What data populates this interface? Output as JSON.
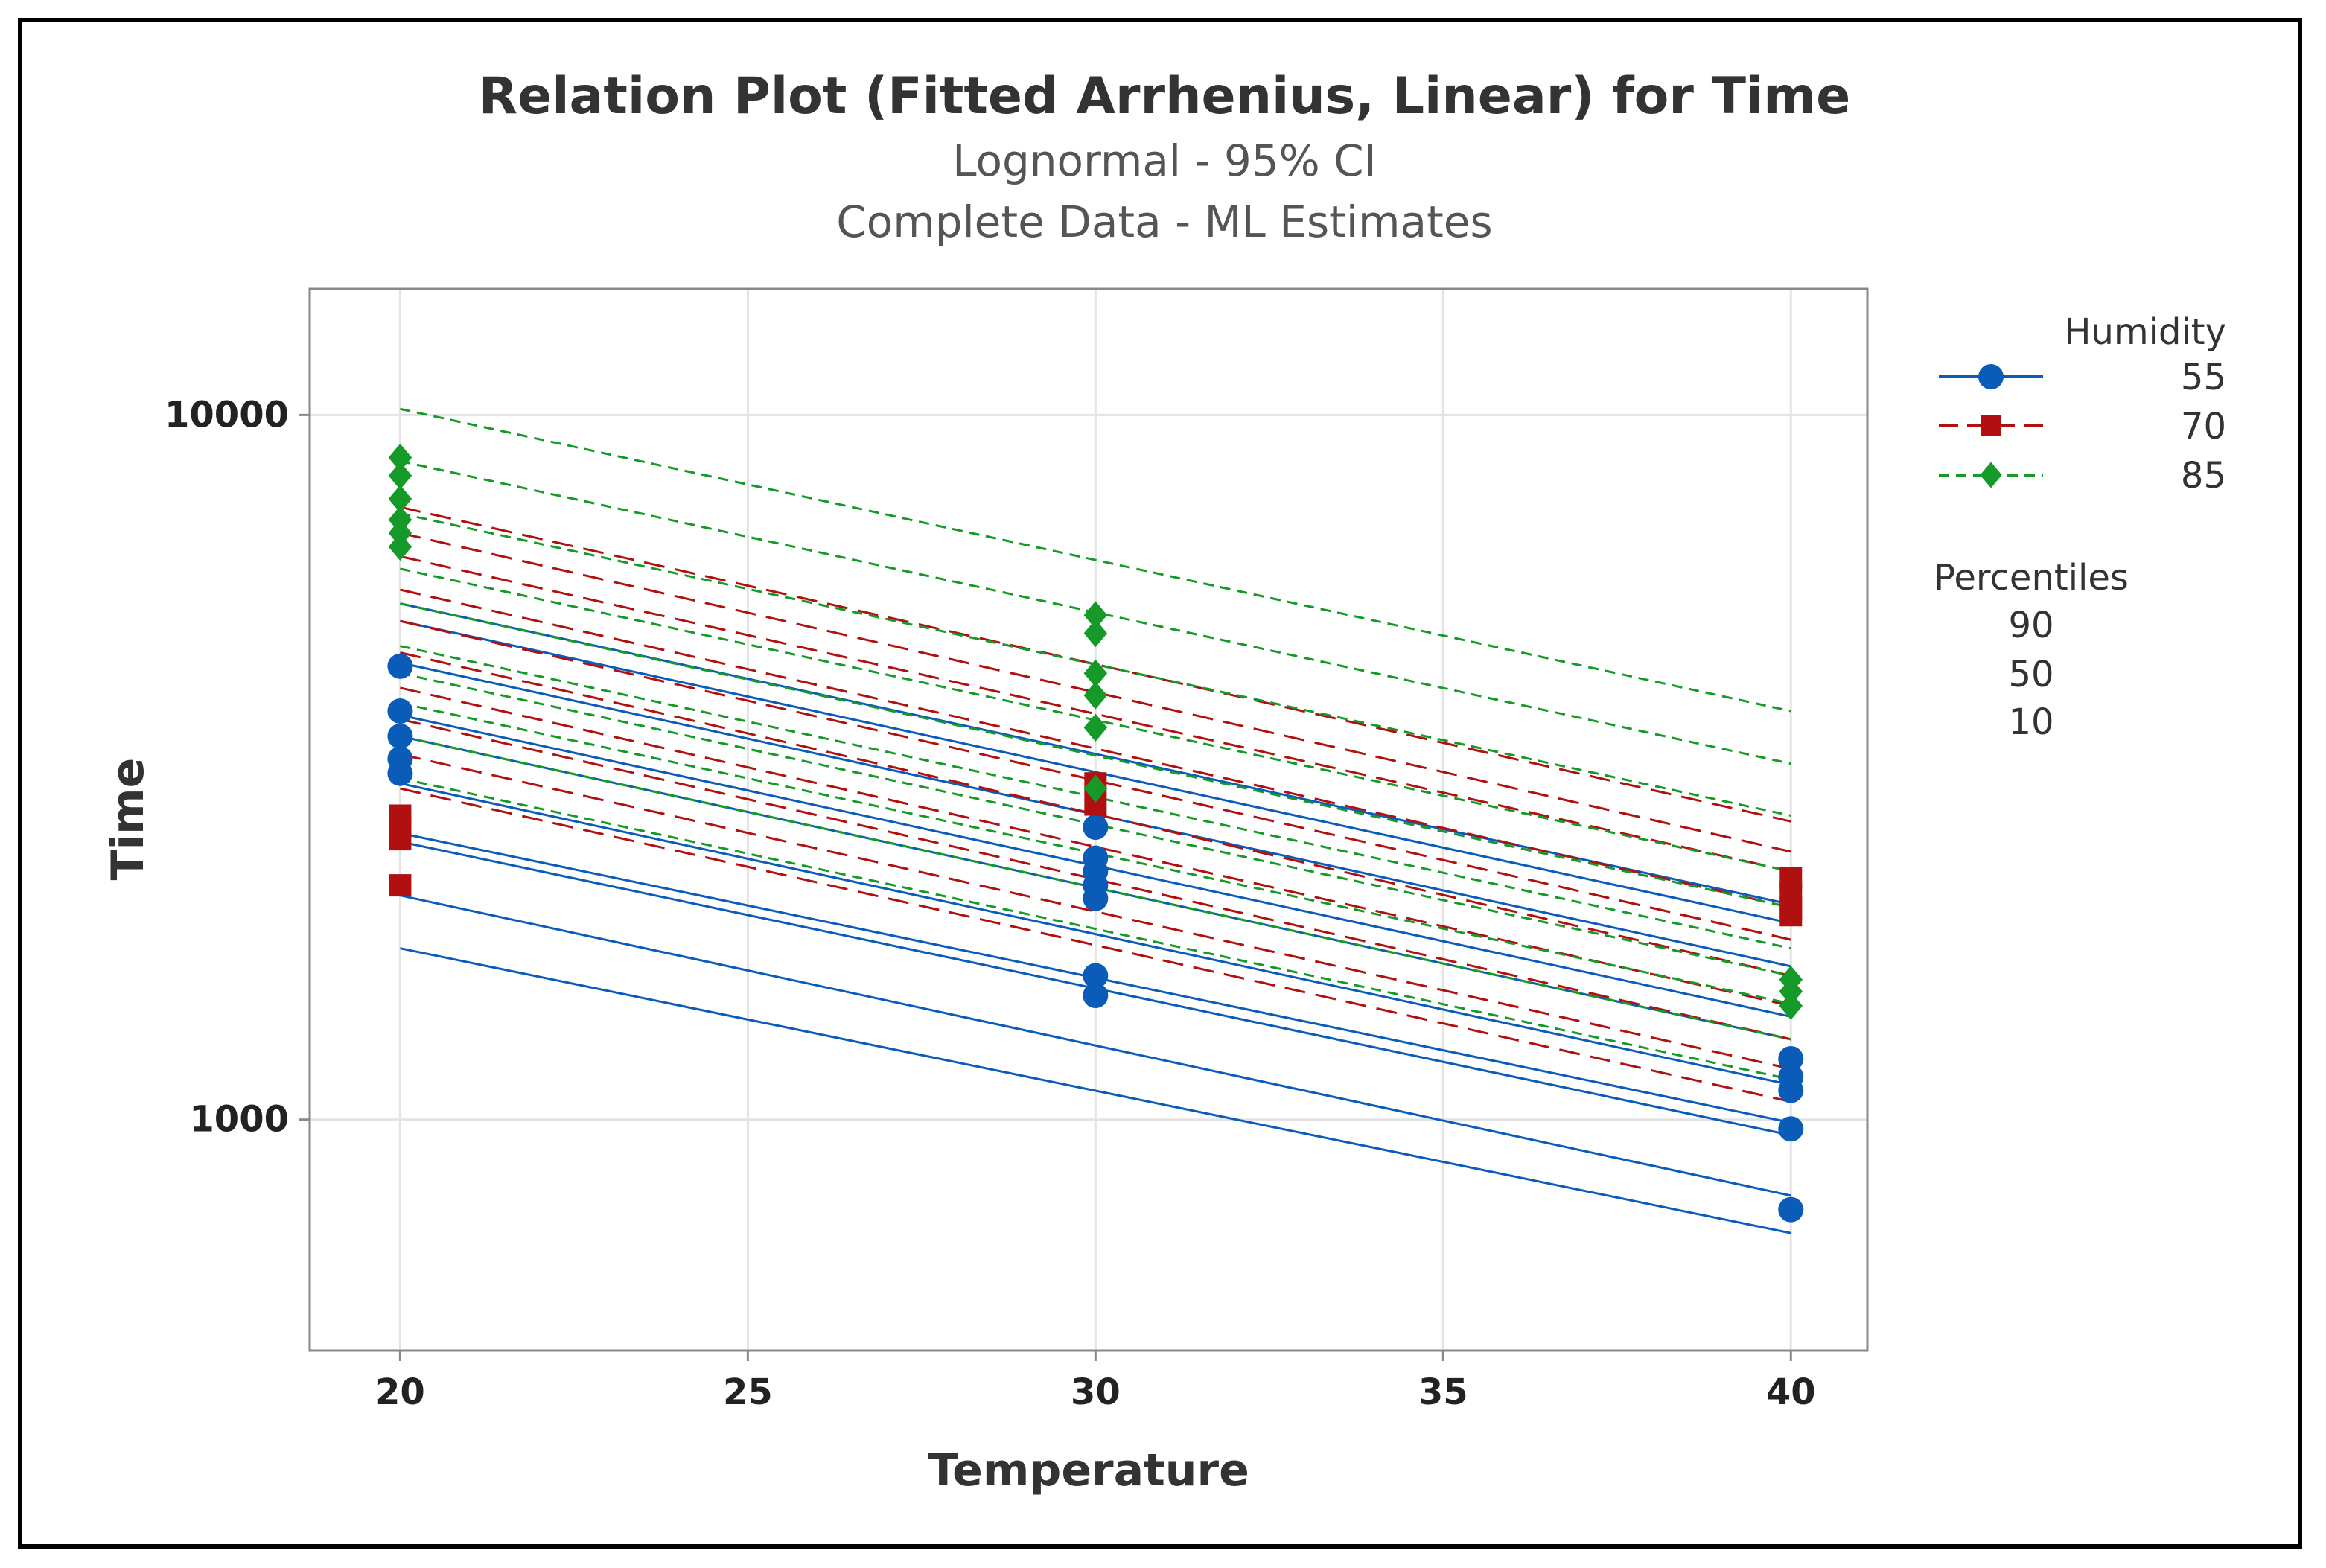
{
  "chart_data": {
    "type": "line",
    "title": "Relation Plot (Fitted Arrhenius, Linear) for Time",
    "subtitle_1": "Lognormal - 95% CI",
    "subtitle_2": "Complete Data - ML Estimates",
    "xlabel": "Temperature",
    "ylabel": "Time",
    "x_ticks": [
      20,
      25,
      30,
      35,
      40
    ],
    "y_ticks": [
      1000,
      10000
    ],
    "y_tick_labels": [
      "1000",
      "10000"
    ],
    "xlim": [
      18.7,
      41.1
    ],
    "ylim": [
      470,
      15100
    ],
    "y_scale": "log",
    "grid": true,
    "legend": {
      "position": "right",
      "humidity_title": "Humidity",
      "percentiles_title": "Percentiles",
      "percentile_labels": [
        "90",
        "50",
        "10"
      ]
    },
    "series": [
      {
        "name": "55",
        "color": "#0a5cb8",
        "dash": "solid",
        "marker": "circle",
        "lines": [
          [
            5400,
            2020
          ],
          [
            5100,
            1900
          ],
          [
            4450,
            1650
          ],
          [
            3750,
            1400
          ],
          [
            3500,
            1300
          ],
          [
            3000,
            1120
          ],
          [
            2550,
            990
          ],
          [
            2480,
            950
          ],
          [
            2080,
            780
          ],
          [
            1750,
            690
          ]
        ],
        "points": [
          [
            20,
            4400
          ],
          [
            20,
            3800
          ],
          [
            20,
            3500
          ],
          [
            20,
            3250
          ],
          [
            20,
            3100
          ],
          [
            30,
            2600
          ],
          [
            30,
            2350
          ],
          [
            30,
            2250
          ],
          [
            30,
            2150
          ],
          [
            30,
            2060
          ],
          [
            30,
            1600
          ],
          [
            30,
            1500
          ],
          [
            40,
            1220
          ],
          [
            40,
            1150
          ],
          [
            40,
            1100
          ],
          [
            40,
            970
          ],
          [
            40,
            745
          ]
        ]
      },
      {
        "name": "70",
        "color": "#b01010",
        "dash": "long-dash",
        "marker": "square",
        "lines": [
          [
            7400,
            2650
          ],
          [
            6800,
            2400
          ],
          [
            6300,
            2250
          ],
          [
            5650,
            2000
          ],
          [
            5100,
            1800
          ],
          [
            4600,
            1600
          ],
          [
            4100,
            1450
          ],
          [
            3700,
            1300
          ],
          [
            3300,
            1180
          ],
          [
            2950,
            1060
          ]
        ],
        "points": [
          [
            20,
            2700
          ],
          [
            20,
            2600
          ],
          [
            20,
            2500
          ],
          [
            20,
            2150
          ],
          [
            30,
            3000
          ],
          [
            30,
            2800
          ],
          [
            40,
            2200
          ],
          [
            40,
            2100
          ],
          [
            40,
            2000
          ],
          [
            40,
            1950
          ]
        ]
      },
      {
        "name": "85",
        "color": "#159a2a",
        "dash": "short-dash",
        "marker": "diamond",
        "lines": [
          [
            10200,
            3800
          ],
          [
            8600,
            3200
          ],
          [
            7250,
            2700
          ],
          [
            6050,
            2250
          ],
          [
            5400,
            2000
          ],
          [
            4700,
            1750
          ],
          [
            4300,
            1600
          ],
          [
            3900,
            1460
          ],
          [
            3500,
            1300
          ],
          [
            3050,
            1140
          ]
        ],
        "points": [
          [
            20,
            8700
          ],
          [
            20,
            8200
          ],
          [
            20,
            7600
          ],
          [
            20,
            7100
          ],
          [
            20,
            6800
          ],
          [
            20,
            6500
          ],
          [
            30,
            5200
          ],
          [
            30,
            4900
          ],
          [
            30,
            4300
          ],
          [
            30,
            4000
          ],
          [
            30,
            3600
          ],
          [
            30,
            2950
          ],
          [
            40,
            1580
          ],
          [
            40,
            1520
          ],
          [
            40,
            1450
          ]
        ]
      }
    ]
  }
}
